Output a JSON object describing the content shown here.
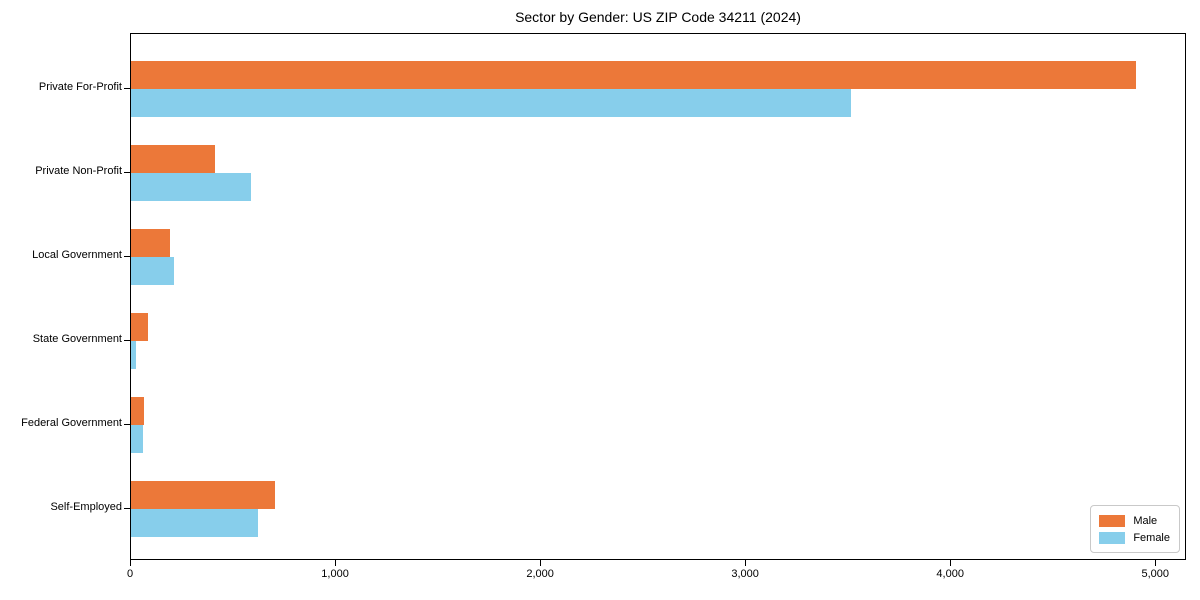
{
  "chart_data": {
    "type": "bar",
    "orientation": "horizontal",
    "title": "Sector by Gender: US ZIP Code 34211 (2024)",
    "categories": [
      "Private For-Profit",
      "Private Non-Profit",
      "Local Government",
      "State Government",
      "Federal Government",
      "Self-Employed"
    ],
    "series": [
      {
        "name": "Male",
        "color": "#ec7839",
        "values": [
          4900,
          410,
          190,
          85,
          65,
          700
        ]
      },
      {
        "name": "Female",
        "color": "#87ceeb",
        "values": [
          3510,
          585,
          210,
          25,
          60,
          620
        ]
      }
    ],
    "xlabel": "",
    "ylabel": "",
    "xlim": [
      0,
      5150
    ],
    "x_ticks": [
      0,
      1000,
      2000,
      3000,
      4000,
      5000
    ],
    "x_tick_labels": [
      "0",
      "1,000",
      "2,000",
      "3,000",
      "4,000",
      "5,000"
    ],
    "grid": false,
    "legend": {
      "position": "lower right",
      "entries": [
        "Male",
        "Female"
      ]
    }
  }
}
